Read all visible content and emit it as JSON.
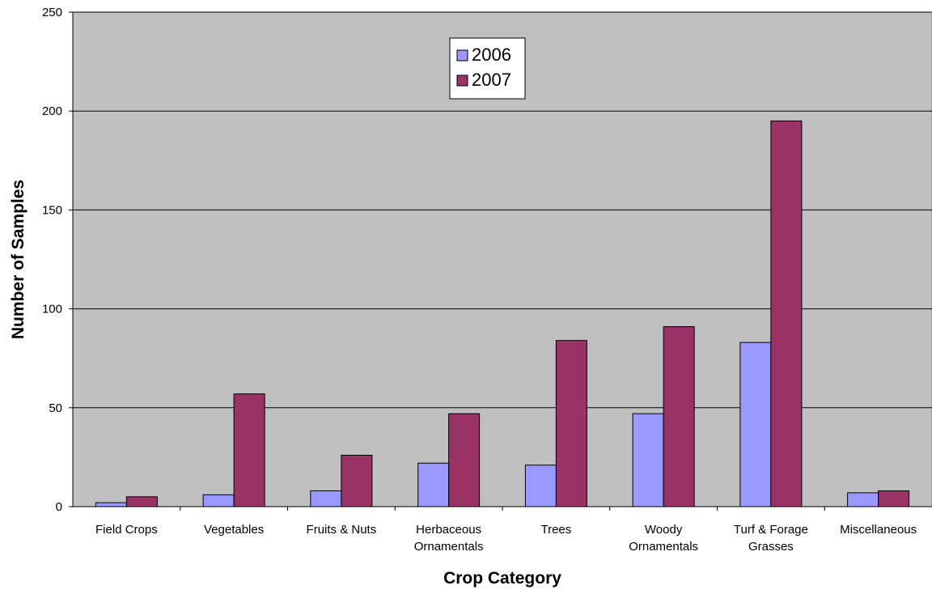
{
  "chart_data": {
    "type": "bar",
    "xlabel": "Crop Category",
    "ylabel": "Number of Samples",
    "ylim": [
      0,
      250
    ],
    "yticks": [
      0,
      50,
      100,
      150,
      200,
      250
    ],
    "grid": true,
    "legend_position": "top-center",
    "categories": [
      [
        "Field Crops"
      ],
      [
        "Vegetables"
      ],
      [
        "Fruits & Nuts"
      ],
      [
        "Herbaceous",
        "Ornamentals"
      ],
      [
        "Trees"
      ],
      [
        "Woody",
        "Ornamentals"
      ],
      [
        "Turf & Forage",
        "Grasses"
      ],
      [
        "Miscellaneous"
      ]
    ],
    "series": [
      {
        "name": "2006",
        "color": "#9999ff",
        "values": [
          2,
          6,
          8,
          22,
          21,
          47,
          83,
          7
        ]
      },
      {
        "name": "2007",
        "color": "#993366",
        "values": [
          5,
          57,
          26,
          47,
          84,
          91,
          195,
          8
        ]
      }
    ],
    "plot_background": "#c0c0c0"
  }
}
